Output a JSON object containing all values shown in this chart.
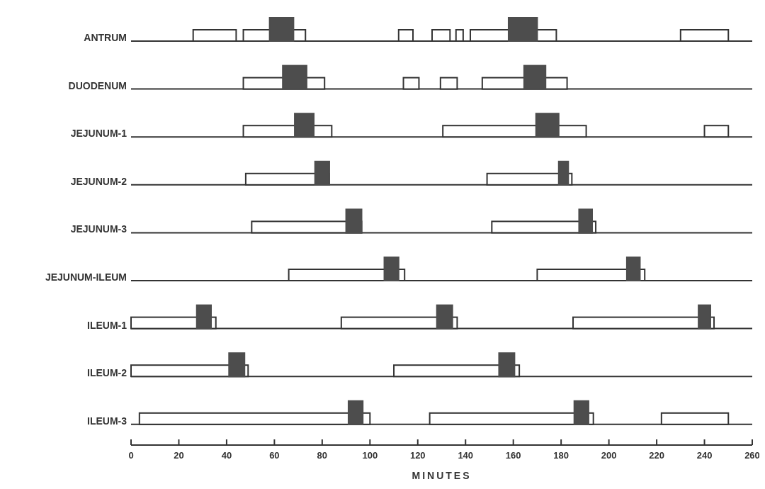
{
  "chart_data": {
    "type": "bar",
    "orientation": "horizontal",
    "xlabel": "MINUTES",
    "categories": [
      "ANTRUM",
      "DUODENUM",
      "JEJUNUM-1",
      "JEJUNUM-2",
      "JEJUNUM-3",
      "JEJUNUM-ILEUM",
      "ILEUM-1",
      "ILEUM-2",
      "ILEUM-3"
    ],
    "xlim": [
      0,
      260
    ],
    "xticks": [
      0,
      20,
      40,
      60,
      80,
      100,
      120,
      140,
      160,
      180,
      200,
      220,
      240,
      260
    ],
    "grid": "y",
    "series": [
      {
        "color": "#ffffff",
        "base": [
          26,
          47,
          47,
          48,
          50.5,
          66,
          0,
          0,
          3.5
        ],
        "values": [
          18,
          34,
          37,
          35,
          46,
          48.5,
          35.5,
          49,
          96.5
        ]
      },
      {
        "color": "#ffffff",
        "base": [
          47,
          114,
          130.5,
          149,
          151,
          170,
          88,
          110,
          125
        ],
        "values": [
          26,
          6.5,
          60,
          35.5,
          43.5,
          45,
          48.5,
          52.5,
          68.5
        ]
      },
      {
        "color": "#ffffff",
        "base": [
          112,
          129.5,
          240,
          null,
          null,
          null,
          185,
          null,
          222
        ],
        "values": [
          6,
          7,
          10,
          null,
          null,
          null,
          59,
          null,
          28
        ]
      },
      {
        "color": "#ffffff",
        "base": [
          126,
          147,
          null,
          null,
          null,
          null,
          null,
          null,
          null
        ],
        "values": [
          7.5,
          35.5,
          null,
          null,
          null,
          null,
          null,
          null,
          null
        ]
      },
      {
        "color": "#ffffff",
        "base": [
          136,
          null,
          null,
          null,
          null,
          null,
          null,
          null,
          null
        ],
        "values": [
          3,
          null,
          null,
          null,
          null,
          null,
          null,
          null,
          null
        ]
      },
      {
        "color": "#ffffff",
        "base": [
          142,
          null,
          null,
          null,
          null,
          null,
          null,
          null,
          null
        ],
        "values": [
          36,
          null,
          null,
          null,
          null,
          null,
          null,
          null,
          null
        ]
      },
      {
        "color": "#ffffff",
        "base": [
          230,
          null,
          null,
          null,
          null,
          null,
          null,
          null,
          null
        ],
        "values": [
          20,
          null,
          null,
          null,
          null,
          null,
          null,
          null,
          null
        ]
      },
      {
        "color": "#4d4d4d",
        "base": [
          58,
          63.5,
          68.5,
          77,
          90,
          106,
          27.5,
          41,
          91
        ],
        "values": [
          10,
          10,
          8,
          6,
          6.5,
          6,
          6,
          6.5,
          6
        ]
      },
      {
        "color": "#4d4d4d",
        "base": [
          158,
          164.5,
          169.5,
          179,
          187.5,
          207.5,
          128,
          154,
          185.5
        ],
        "values": [
          12,
          9,
          9.5,
          4,
          5.5,
          5.5,
          6.5,
          6.5,
          6
        ]
      },
      {
        "color": "#4d4d4d",
        "base": [
          null,
          null,
          null,
          null,
          null,
          null,
          237.5,
          null,
          null
        ],
        "values": [
          null,
          null,
          null,
          null,
          null,
          null,
          5,
          null,
          null
        ]
      }
    ]
  }
}
